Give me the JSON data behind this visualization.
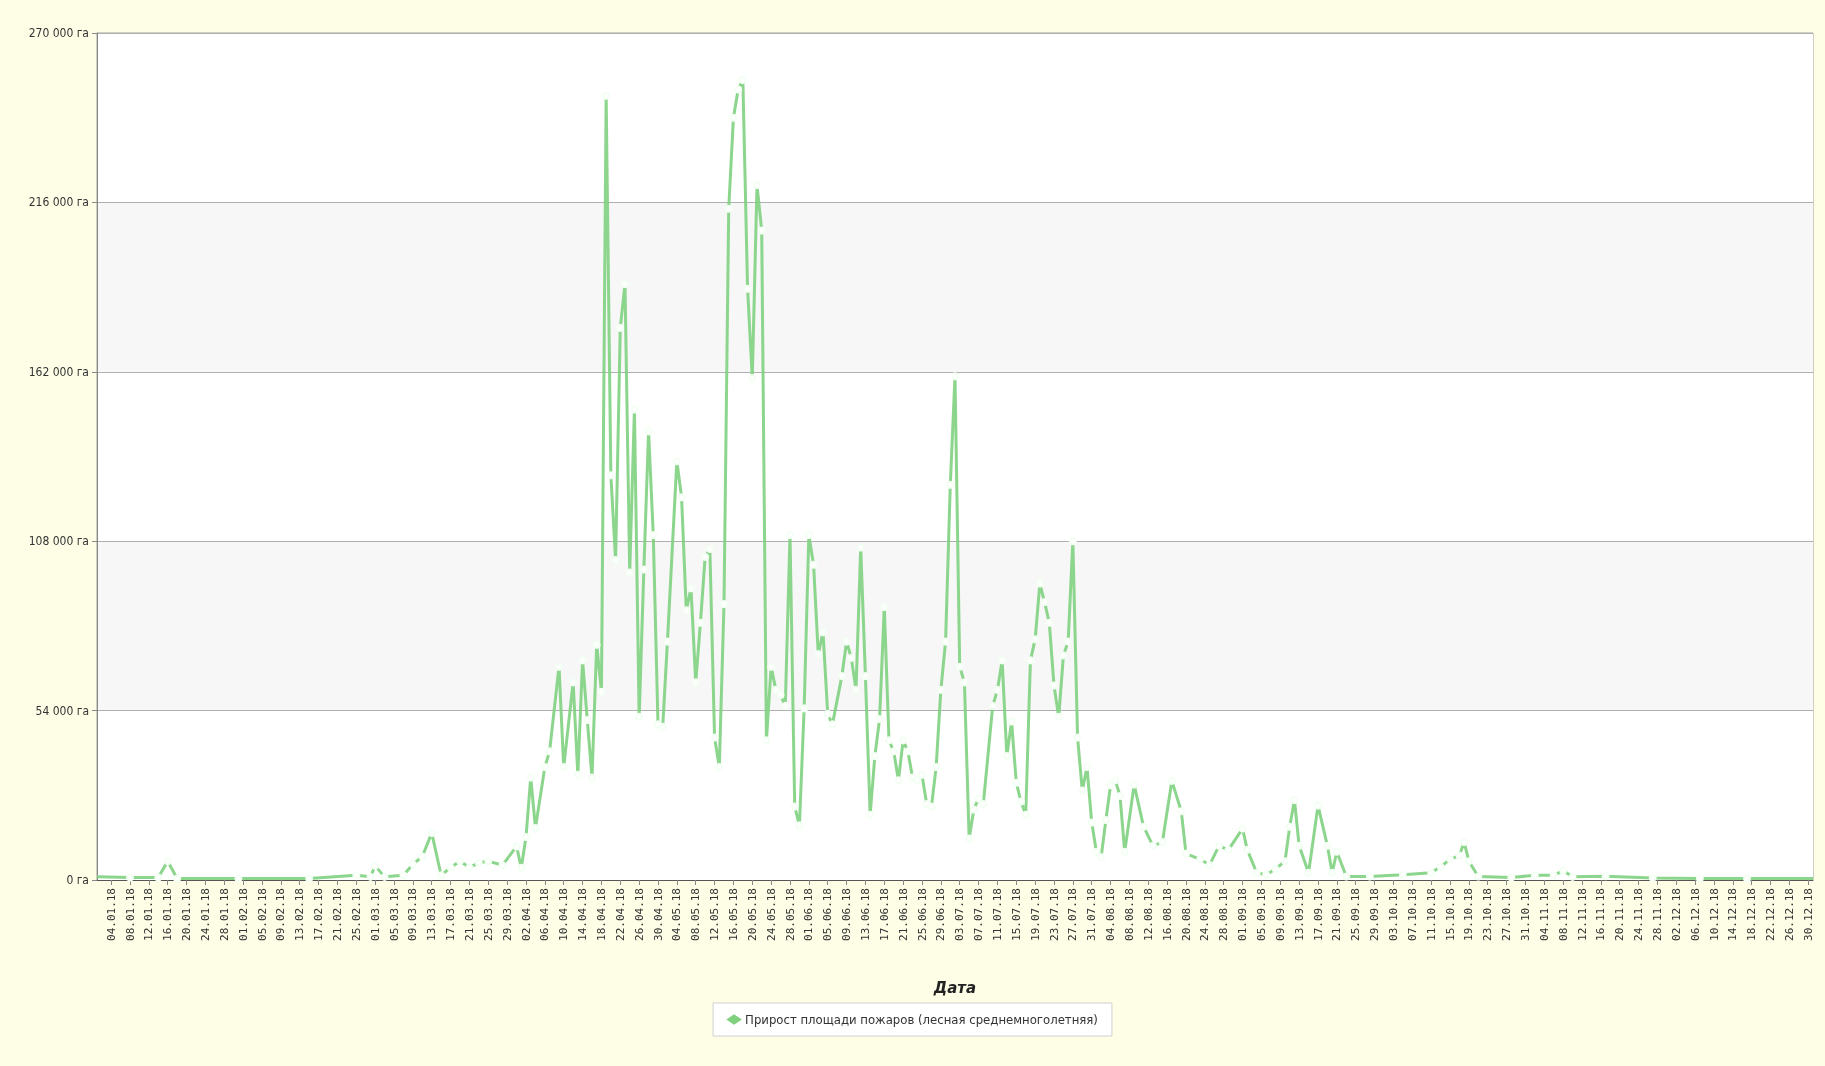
{
  "chart_data": {
    "type": "line",
    "xlabel": "Дата",
    "legend": "bottom",
    "grid": "y",
    "marker": "circle",
    "line_style": "solid",
    "x": [
      "--01-01",
      "--01-08",
      "--01-14",
      "--01-16",
      "--01-18",
      "--01-31",
      "--02-15",
      "--02-25",
      "--02-28",
      "--03-01",
      "--03-03",
      "--03-07",
      "--03-09",
      "--03-11",
      "--03-13",
      "--03-15",
      "--03-17",
      "--03-19",
      "--03-21",
      "--03-23",
      "--03-25",
      "--03-28",
      "--03-31",
      "--04-01",
      "--04-02",
      "--04-03",
      "--04-04",
      "--04-06",
      "--04-07",
      "--04-09",
      "--04-10",
      "--04-12",
      "--04-13",
      "--04-14",
      "--04-15",
      "--04-16",
      "--04-17",
      "--04-18",
      "--04-19",
      "--04-20",
      "--04-21",
      "--04-22",
      "--04-23",
      "--04-24",
      "--04-25",
      "--04-26",
      "--04-27",
      "--04-28",
      "--04-29",
      "--04-30",
      "--05-01",
      "--05-02",
      "--05-04",
      "--05-05",
      "--05-06",
      "--05-07",
      "--05-08",
      "--05-09",
      "--05-10",
      "--05-11",
      "--05-12",
      "--05-13",
      "--05-14",
      "--05-15",
      "--05-16",
      "--05-17",
      "--05-18",
      "--05-19",
      "--05-20",
      "--05-21",
      "--05-22",
      "--05-23",
      "--05-24",
      "--05-25",
      "--05-26",
      "--05-27",
      "--05-28",
      "--05-29",
      "--05-30",
      "--05-31",
      "--06-01",
      "--06-02",
      "--06-03",
      "--06-04",
      "--06-05",
      "--06-06",
      "--06-08",
      "--06-09",
      "--06-10",
      "--06-11",
      "--06-12",
      "--06-13",
      "--06-14",
      "--06-15",
      "--06-16",
      "--06-17",
      "--06-18",
      "--06-19",
      "--06-20",
      "--06-21",
      "--06-22",
      "--06-23",
      "--06-24",
      "--06-25",
      "--06-26",
      "--06-27",
      "--06-28",
      "--06-29",
      "--06-30",
      "--07-01",
      "--07-02",
      "--07-03",
      "--07-04",
      "--07-05",
      "--07-06",
      "--07-07",
      "--07-08",
      "--07-10",
      "--07-11",
      "--07-12",
      "--07-13",
      "--07-14",
      "--07-15",
      "--07-16",
      "--07-17",
      "--07-18",
      "--07-19",
      "--07-20",
      "--07-21",
      "--07-22",
      "--07-23",
      "--07-24",
      "--07-25",
      "--07-26",
      "--07-27",
      "--07-28",
      "--07-29",
      "--07-30",
      "--07-31",
      "--08-01",
      "--08-02",
      "--08-03",
      "--08-04",
      "--08-05",
      "--08-06",
      "--08-07",
      "--08-09",
      "--08-11",
      "--08-13",
      "--08-15",
      "--08-17",
      "--08-19",
      "--08-20",
      "--08-23",
      "--08-25",
      "--08-27",
      "--08-29",
      "--09-01",
      "--09-02",
      "--09-04",
      "--09-06",
      "--09-08",
      "--09-10",
      "--09-11",
      "--09-12",
      "--09-13",
      "--09-15",
      "--09-17",
      "--09-19",
      "--09-20",
      "--09-21",
      "--09-23",
      "--09-28",
      "--10-05",
      "--10-11",
      "--10-13",
      "--10-15",
      "--10-17",
      "--10-18",
      "--10-19",
      "--10-21",
      "--10-28",
      "--11-02",
      "--11-06",
      "--11-08",
      "--11-10",
      "--11-17",
      "--11-27",
      "--12-07",
      "--12-17",
      "--12-31"
    ],
    "series": [
      {
        "name": "Прирост площади пожаров (лесная среднемноголетняя)",
        "color": "#80d080",
        "values": [
          1000,
          800,
          800,
          6000,
          500,
          500,
          500,
          1500,
          1000,
          4500,
          1000,
          1500,
          5000,
          7500,
          15000,
          1500,
          4000,
          6000,
          4000,
          5500,
          6000,
          4700,
          10700,
          3900,
          13700,
          32700,
          16600,
          36000,
          41000,
          68000,
          36000,
          63000,
          33500,
          70000,
          51000,
          32700,
          75000,
          60000,
          250000,
          129000,
          102000,
          176000,
          190000,
          98000,
          150000,
          52000,
          99000,
          143000,
          110000,
          49600,
          48800,
          76000,
          133500,
          122000,
          86000,
          93000,
          63000,
          82000,
          103000,
          105500,
          45400,
          36000,
          88000,
          214000,
          243000,
          252000,
          255000,
          188500,
          160000,
          221500,
          207000,
          44500,
          68000,
          60600,
          59000,
          55500,
          110000,
          23400,
          17400,
          54700,
          110000,
          100500,
          72000,
          79000,
          53000,
          49600,
          65000,
          76000,
          70800,
          60600,
          106000,
          65000,
          20800,
          39500,
          51300,
          87000,
          44500,
          41000,
          31800,
          44500,
          41000,
          32700,
          31800,
          33500,
          24200,
          23400,
          36000,
          60600,
          76000,
          126000,
          160600,
          68000,
          63000,
          13200,
          22500,
          26000,
          24200,
          55500,
          60600,
          70000,
          39500,
          50500,
          31000,
          25000,
          20800,
          70000,
          76700,
          94500,
          88600,
          82000,
          62000,
          52000,
          71600,
          76000,
          108000,
          45400,
          28500,
          36000,
          18300,
          9000,
          7300,
          19100,
          30200,
          31800,
          26800,
          9000,
          30400,
          17000,
          10900,
          12100,
          31600,
          21900,
          8400,
          6600,
          4800,
          10900,
          9600,
          16400,
          9600,
          2300,
          1700,
          3500,
          6000,
          17000,
          25500,
          10900,
          2300,
          23700,
          10900,
          2300,
          9000,
          1100,
          1100,
          1700,
          2300,
          4200,
          6600,
          7800,
          12100,
          6000,
          1100,
          800,
          1500,
          1500,
          3000,
          1000,
          1200,
          600,
          500,
          500,
          500
        ]
      }
    ],
    "xlim": [
      "--01-01",
      "--12-31"
    ],
    "xticks": [
      {
        "value": "--01-04",
        "label": "04.01.18"
      },
      {
        "value": "--01-08",
        "label": "08.01.18"
      },
      {
        "value": "--01-12",
        "label": "12.01.18"
      },
      {
        "value": "--01-16",
        "label": "16.01.18"
      },
      {
        "value": "--01-20",
        "label": "20.01.18"
      },
      {
        "value": "--01-24",
        "label": "24.01.18"
      },
      {
        "value": "--01-28",
        "label": "28.01.18"
      },
      {
        "value": "--02-01",
        "label": "01.02.18"
      },
      {
        "value": "--02-05",
        "label": "05.02.18"
      },
      {
        "value": "--02-09",
        "label": "09.02.18"
      },
      {
        "value": "--02-13",
        "label": "13.02.18"
      },
      {
        "value": "--02-17",
        "label": "17.02.18"
      },
      {
        "value": "--02-21",
        "label": "21.02.18"
      },
      {
        "value": "--02-25",
        "label": "25.02.18"
      },
      {
        "value": "--03-01",
        "label": "01.03.18"
      },
      {
        "value": "--03-05",
        "label": "05.03.18"
      },
      {
        "value": "--03-09",
        "label": "09.03.18"
      },
      {
        "value": "--03-13",
        "label": "13.03.18"
      },
      {
        "value": "--03-17",
        "label": "17.03.18"
      },
      {
        "value": "--03-21",
        "label": "21.03.18"
      },
      {
        "value": "--03-25",
        "label": "25.03.18"
      },
      {
        "value": "--03-29",
        "label": "29.03.18"
      },
      {
        "value": "--04-02",
        "label": "02.04.18"
      },
      {
        "value": "--04-06",
        "label": "06.04.18"
      },
      {
        "value": "--04-10",
        "label": "10.04.18"
      },
      {
        "value": "--04-14",
        "label": "14.04.18"
      },
      {
        "value": "--04-18",
        "label": "18.04.18"
      },
      {
        "value": "--04-22",
        "label": "22.04.18"
      },
      {
        "value": "--04-26",
        "label": "26.04.18"
      },
      {
        "value": "--04-30",
        "label": "30.04.18"
      },
      {
        "value": "--05-04",
        "label": "04.05.18"
      },
      {
        "value": "--05-08",
        "label": "08.05.18"
      },
      {
        "value": "--05-12",
        "label": "12.05.18"
      },
      {
        "value": "--05-16",
        "label": "16.05.18"
      },
      {
        "value": "--05-20",
        "label": "20.05.18"
      },
      {
        "value": "--05-24",
        "label": "24.05.18"
      },
      {
        "value": "--05-28",
        "label": "28.05.18"
      },
      {
        "value": "--06-01",
        "label": "01.06.18"
      },
      {
        "value": "--06-05",
        "label": "05.06.18"
      },
      {
        "value": "--06-09",
        "label": "09.06.18"
      },
      {
        "value": "--06-13",
        "label": "13.06.18"
      },
      {
        "value": "--06-17",
        "label": "17.06.18"
      },
      {
        "value": "--06-21",
        "label": "21.06.18"
      },
      {
        "value": "--06-25",
        "label": "25.06.18"
      },
      {
        "value": "--06-29",
        "label": "29.06.18"
      },
      {
        "value": "--07-03",
        "label": "03.07.18"
      },
      {
        "value": "--07-07",
        "label": "07.07.18"
      },
      {
        "value": "--07-11",
        "label": "11.07.18"
      },
      {
        "value": "--07-15",
        "label": "15.07.18"
      },
      {
        "value": "--07-19",
        "label": "19.07.18"
      },
      {
        "value": "--07-23",
        "label": "23.07.18"
      },
      {
        "value": "--07-27",
        "label": "27.07.18"
      },
      {
        "value": "--07-31",
        "label": "31.07.18"
      },
      {
        "value": "--08-04",
        "label": "04.08.18"
      },
      {
        "value": "--08-08",
        "label": "08.08.18"
      },
      {
        "value": "--08-12",
        "label": "12.08.18"
      },
      {
        "value": "--08-16",
        "label": "16.08.18"
      },
      {
        "value": "--08-20",
        "label": "20.08.18"
      },
      {
        "value": "--08-24",
        "label": "24.08.18"
      },
      {
        "value": "--08-28",
        "label": "28.08.18"
      },
      {
        "value": "--09-01",
        "label": "01.09.18"
      },
      {
        "value": "--09-05",
        "label": "05.09.18"
      },
      {
        "value": "--09-09",
        "label": "09.09.18"
      },
      {
        "value": "--09-13",
        "label": "13.09.18"
      },
      {
        "value": "--09-17",
        "label": "17.09.18"
      },
      {
        "value": "--09-21",
        "label": "21.09.18"
      },
      {
        "value": "--09-25",
        "label": "25.09.18"
      },
      {
        "value": "--09-29",
        "label": "29.09.18"
      },
      {
        "value": "--10-03",
        "label": "03.10.18"
      },
      {
        "value": "--10-07",
        "label": "07.10.18"
      },
      {
        "value": "--10-11",
        "label": "11.10.18"
      },
      {
        "value": "--10-15",
        "label": "15.10.18"
      },
      {
        "value": "--10-19",
        "label": "19.10.18"
      },
      {
        "value": "--10-23",
        "label": "23.10.18"
      },
      {
        "value": "--10-27",
        "label": "27.10.18"
      },
      {
        "value": "--10-31",
        "label": "31.10.18"
      },
      {
        "value": "--11-04",
        "label": "04.11.18"
      },
      {
        "value": "--11-08",
        "label": "08.11.18"
      },
      {
        "value": "--11-12",
        "label": "12.11.18"
      },
      {
        "value": "--11-16",
        "label": "16.11.18"
      },
      {
        "value": "--11-20",
        "label": "20.11.18"
      },
      {
        "value": "--11-24",
        "label": "24.11.18"
      },
      {
        "value": "--11-28",
        "label": "28.11.18"
      },
      {
        "value": "--12-02",
        "label": "02.12.18"
      },
      {
        "value": "--12-06",
        "label": "06.12.18"
      },
      {
        "value": "--12-10",
        "label": "10.12.18"
      },
      {
        "value": "--12-14",
        "label": "14.12.18"
      },
      {
        "value": "--12-18",
        "label": "18.12.18"
      },
      {
        "value": "--12-22",
        "label": "22.12.18"
      },
      {
        "value": "--12-26",
        "label": "26.12.18"
      },
      {
        "value": "--12-30",
        "label": "30.12.18"
      }
    ],
    "ylim": [
      0,
      270000
    ],
    "yticks": [
      {
        "value": 0,
        "label": "0 га"
      },
      {
        "value": 54000,
        "label": "54 000 га"
      },
      {
        "value": 108000,
        "label": "108 000 га"
      },
      {
        "value": 162000,
        "label": "162 000 га"
      },
      {
        "value": 216000,
        "label": "216 000 га"
      },
      {
        "value": 270000,
        "label": "270 000 га"
      }
    ]
  }
}
